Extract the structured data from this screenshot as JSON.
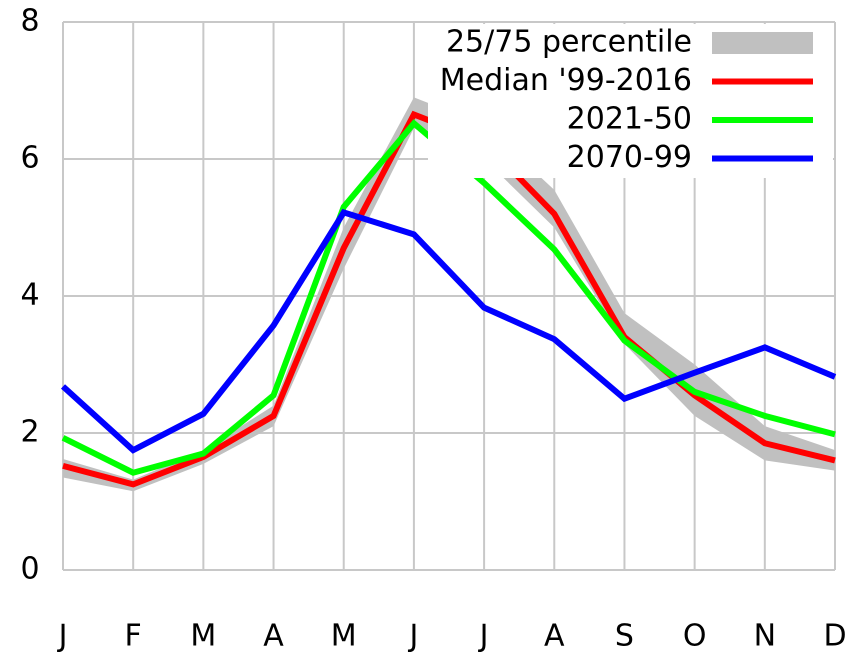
{
  "chart_data": {
    "type": "line",
    "categories": [
      "J",
      "F",
      "M",
      "A",
      "M",
      "J",
      "J",
      "A",
      "S",
      "O",
      "N",
      "D"
    ],
    "series": [
      {
        "name": "25/75 percentile",
        "color": "#c0c0c0",
        "lower": [
          1.35,
          1.15,
          1.55,
          2.1,
          4.4,
          6.45,
          6.0,
          5.0,
          3.3,
          2.25,
          1.6,
          1.45
        ],
        "upper": [
          1.62,
          1.32,
          1.75,
          2.4,
          5.0,
          6.9,
          6.5,
          5.55,
          3.75,
          3.0,
          2.1,
          1.75
        ]
      },
      {
        "name": "Median '99-2016",
        "color": "#ff0000",
        "values": [
          1.52,
          1.25,
          1.65,
          2.25,
          4.7,
          6.65,
          6.25,
          5.2,
          3.4,
          2.55,
          1.85,
          1.6
        ]
      },
      {
        "name": "2021-50",
        "color": "#00ff00",
        "values": [
          1.93,
          1.42,
          1.7,
          2.55,
          5.3,
          6.52,
          5.65,
          4.68,
          3.35,
          2.6,
          2.25,
          1.98
        ]
      },
      {
        "name": "2070-99",
        "color": "#0000ff",
        "values": [
          2.68,
          1.75,
          2.28,
          3.57,
          5.22,
          4.9,
          3.83,
          3.37,
          2.5,
          2.88,
          3.25,
          2.82
        ]
      }
    ],
    "ylim": [
      0,
      8
    ],
    "yticks": [
      0,
      2,
      4,
      6,
      8
    ],
    "grid": true,
    "legend": "upper right"
  }
}
